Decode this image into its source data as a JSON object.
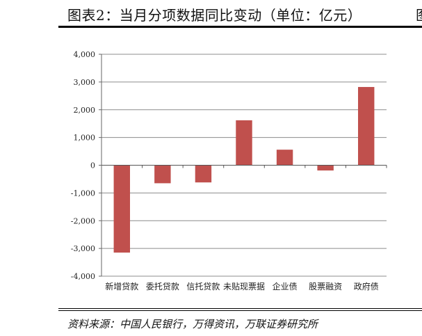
{
  "title": "图表2：当月分项数据同比变动（单位：亿元）",
  "title_edge_glyph": "图",
  "source": "资料来源：中国人民银行，万得资讯，万联证券研究所",
  "chart_data": {
    "type": "bar",
    "title": "",
    "xlabel": "",
    "ylabel": "",
    "categories": [
      "新增贷款",
      "委托贷款",
      "信托贷款",
      "未贴现票据",
      "企业债",
      "股票融资",
      "政府债"
    ],
    "values": [
      -3150,
      -650,
      -620,
      1620,
      560,
      -190,
      2820
    ],
    "ylim": [
      -4000,
      4000
    ],
    "yticks": [
      4000,
      3000,
      2000,
      1000,
      0,
      -1000,
      -2000,
      -3000,
      -4000
    ],
    "ytick_labels": [
      "4,000",
      "3,000",
      "2,000",
      "1,000",
      "0",
      "-1,000",
      "-2,000",
      "-3,000",
      "-4,000"
    ],
    "grid": "horizontal",
    "legend": "none",
    "bar_color": "#C0504D"
  }
}
